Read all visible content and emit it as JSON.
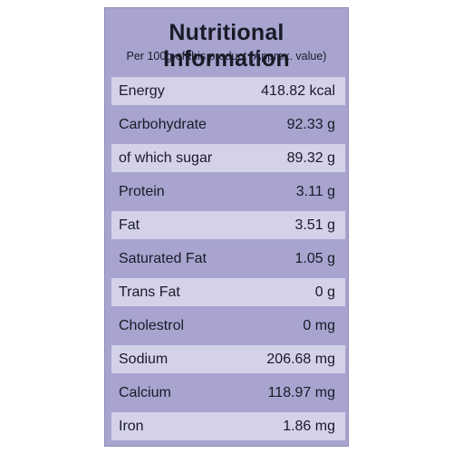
{
  "panel": {
    "title": "Nutritional Information",
    "subtitle": "Per 100g of this product (Approx. value)"
  },
  "rows": [
    {
      "name": "Energy",
      "value": "418.82 kcal"
    },
    {
      "name": "Carbohydrate",
      "value": "92.33 g"
    },
    {
      "name": "of which sugar",
      "value": "89.32 g"
    },
    {
      "name": "Protein",
      "value": "3.11 g"
    },
    {
      "name": "Fat",
      "value": "3.51 g"
    },
    {
      "name": "Saturated Fat",
      "value": "1.05 g"
    },
    {
      "name": "Trans Fat",
      "value": "0 g"
    },
    {
      "name": "Cholestrol",
      "value": "0 mg"
    },
    {
      "name": "Sodium",
      "value": "206.68 mg"
    },
    {
      "name": "Calcium",
      "value": "118.97 mg"
    },
    {
      "name": "Iron",
      "value": "1.86 mg"
    }
  ],
  "colors": {
    "panel_background": "#a8a4cf",
    "light_row": "#d4d2e9",
    "text": "#1a1a28"
  }
}
